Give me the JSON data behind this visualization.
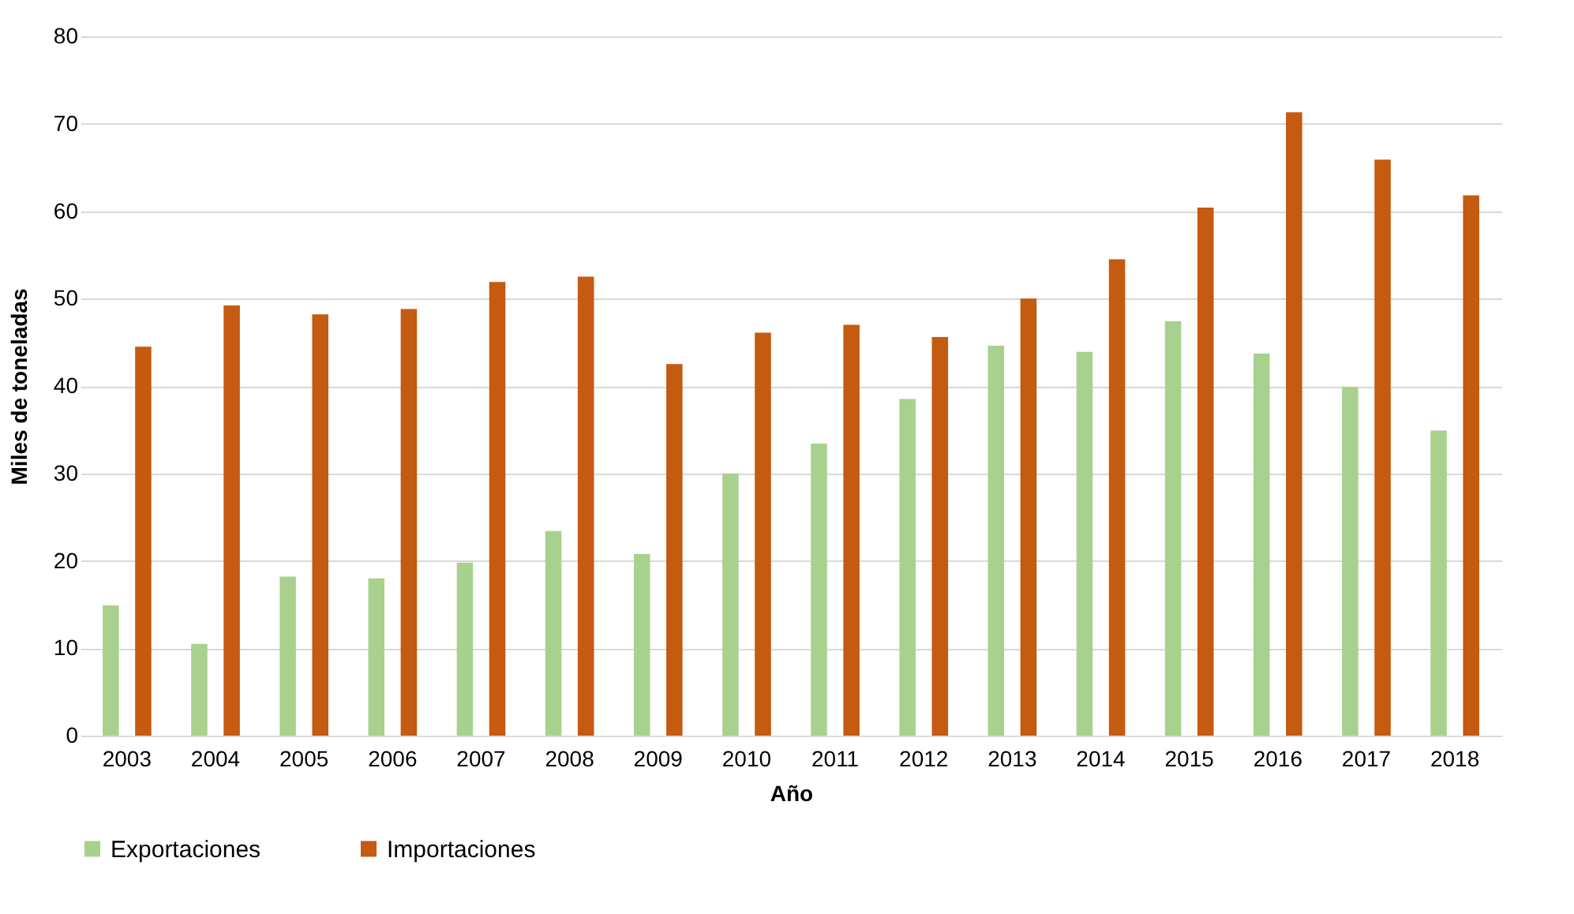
{
  "chart_data": {
    "type": "bar",
    "xlabel": "Año",
    "ylabel": "Miles de toneladas",
    "categories": [
      "2003",
      "2004",
      "2005",
      "2006",
      "2007",
      "2008",
      "2009",
      "2010",
      "2011",
      "2012",
      "2013",
      "2014",
      "2015",
      "2016",
      "2017",
      "2018"
    ],
    "series": [
      {
        "name": "Exportaciones",
        "color": "#a9d18e",
        "values": [
          14.9,
          10.5,
          18.2,
          18.0,
          19.8,
          23.4,
          20.8,
          30.0,
          33.4,
          38.5,
          44.6,
          43.9,
          47.4,
          43.7,
          39.9,
          34.9
        ]
      },
      {
        "name": "Importaciones",
        "color": "#c55a11",
        "values": [
          44.5,
          49.2,
          48.2,
          48.8,
          51.9,
          52.5,
          42.5,
          46.1,
          47.0,
          45.6,
          50.0,
          54.5,
          60.4,
          71.3,
          65.9,
          61.8
        ]
      }
    ],
    "ylim": [
      0,
      80
    ],
    "yticks": [
      0,
      10,
      20,
      30,
      40,
      50,
      60,
      70,
      80
    ],
    "grid": "y",
    "legend": "bottom"
  }
}
